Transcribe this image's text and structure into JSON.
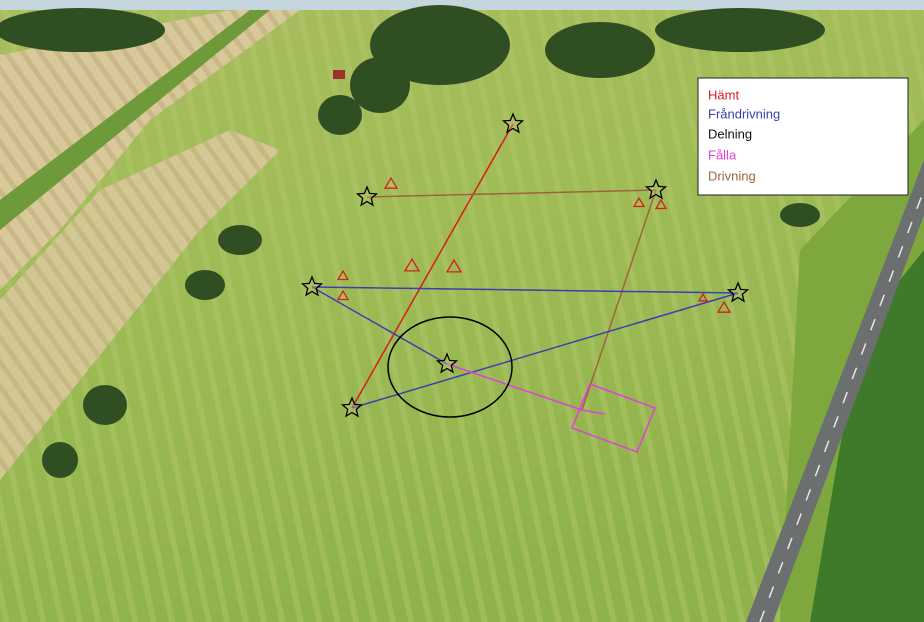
{
  "legend": {
    "items": [
      {
        "label": "Hämt",
        "color": "#d81e1e"
      },
      {
        "label": "Fråndrivning",
        "color": "#3b3fb0"
      },
      {
        "label": "Delning",
        "color": "#111111"
      },
      {
        "label": "Fålla",
        "color": "#e23ee0"
      },
      {
        "label": "Drivning",
        "color": "#a0643c"
      }
    ]
  }
}
